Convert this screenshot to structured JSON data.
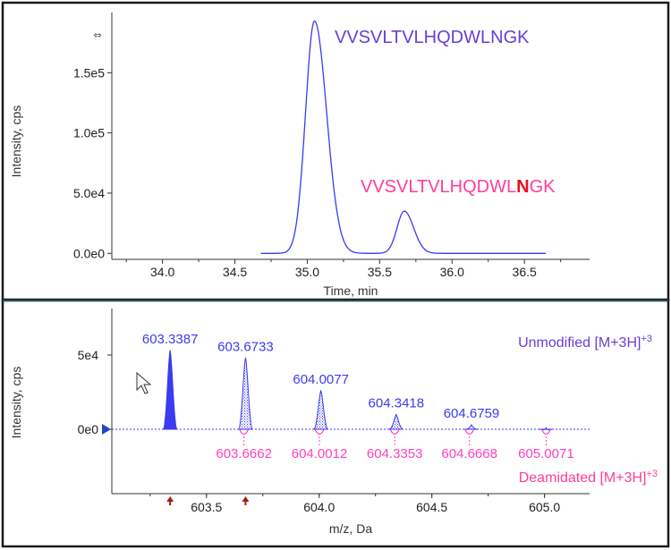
{
  "colors": {
    "frame": "#1a1a1a",
    "divider": "#1f4e5f",
    "trace": "#3b3bf0",
    "deamid_trace": "#ff3fbf",
    "peptide_purple": "#6a3fd0",
    "peptide_pink": "#ff3d9a",
    "bold_red": "#e8101b",
    "tick_text": "#222222",
    "arrow_blue": "#1f49c8",
    "marker_red": "#a11a1a"
  },
  "chart_data": [
    {
      "type": "line",
      "xlabel": "Time, min",
      "ylabel": "Intensity, cps",
      "xlim": [
        33.65,
        36.95
      ],
      "ylim": [
        -5000,
        200000
      ],
      "x_ticks": [
        34.0,
        34.5,
        35.0,
        35.5,
        36.0,
        36.5
      ],
      "x_tick_labels": [
        "34.0",
        "34.5",
        "35.0",
        "35.5",
        "36.0",
        "36.5"
      ],
      "y_ticks": [
        0,
        50000,
        100000,
        150000
      ],
      "y_tick_labels": [
        "0.0e0",
        "5.0e4",
        "1.0e5",
        "1.5e5"
      ],
      "trace_range": [
        34.68,
        36.65
      ],
      "series": [
        {
          "center": 35.05,
          "height": 193000,
          "width": 0.062,
          "skew": 1.35
        },
        {
          "center": 35.67,
          "height": 35000,
          "width": 0.05,
          "skew": 1.3
        }
      ],
      "annotations": {
        "unmodified_peptide": "VVSVLTVLHQDWLNGK",
        "deamidated_prefix": "VVSVLTVLHQDWL",
        "deamidated_residue": "N",
        "deamidated_suffix": "GK"
      }
    },
    {
      "type": "bar",
      "xlabel": "m/z, Da",
      "ylabel": "Intensity, cps",
      "xlim": [
        603.08,
        605.2
      ],
      "ylim": [
        -40000,
        73000
      ],
      "x_ticks": [
        603.5,
        604.0,
        604.5,
        605.0
      ],
      "x_tick_labels": [
        "603.5",
        "604.0",
        "604.5",
        "605.0"
      ],
      "y_ticks": [
        0,
        50000
      ],
      "y_tick_labels": [
        "0e0",
        "5e4"
      ],
      "series": [
        {
          "name": "Unmodified [M+3H]+3",
          "peaks": [
            {
              "mz": 603.3387,
              "label": "603.3387",
              "intensity": 53000
            },
            {
              "mz": 603.6733,
              "label": "603.6733",
              "intensity": 48000
            },
            {
              "mz": 604.0077,
              "label": "604.0077",
              "intensity": 26000
            },
            {
              "mz": 604.3418,
              "label": "604.3418",
              "intensity": 10000
            },
            {
              "mz": 604.6759,
              "label": "604.6759",
              "intensity": 3000
            },
            {
              "mz": 605.0071,
              "label": "",
              "intensity": 1000
            }
          ]
        },
        {
          "name": "Deamidated [M+3H]+3",
          "peaks": [
            {
              "mz": 603.6662,
              "label": "603.6662"
            },
            {
              "mz": 604.0012,
              "label": "604.0012"
            },
            {
              "mz": 604.3353,
              "label": "604.3353"
            },
            {
              "mz": 604.6668,
              "label": "604.6668"
            },
            {
              "mz": 605.0071,
              "label": "605.0071"
            }
          ]
        }
      ],
      "legend": {
        "unmodified": {
          "text": "Unmodified [M+3H]",
          "sup": "+3"
        },
        "deamidated": {
          "text": "Deamidated [M+3H]",
          "sup": "+3"
        }
      },
      "markers_mz": [
        603.3387,
        603.6733
      ]
    }
  ]
}
